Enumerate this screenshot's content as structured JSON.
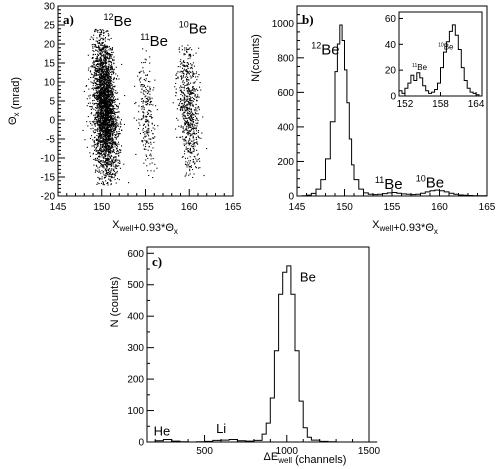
{
  "chart_data": [
    {
      "id": "a",
      "type": "scatter",
      "panel_label": "a)",
      "xlabel": "X_well+0.93*Θ_x",
      "ylabel": "Θ_x (mrad)",
      "xlim": [
        145,
        165
      ],
      "ylim": [
        -20,
        30
      ],
      "xticks": [
        "145",
        "150",
        "155",
        "160",
        "165"
      ],
      "yticks": [
        "-20",
        "-15",
        "-10",
        "-5",
        "0",
        "5",
        "10",
        "15",
        "20",
        "25",
        "30"
      ],
      "annotations": [
        {
          "text": "12Be",
          "mass": "12",
          "el": "Be",
          "x": 150.2,
          "y": 24.8
        },
        {
          "text": "11Be",
          "mass": "11",
          "el": "Be",
          "x": 154.4,
          "y": 19.5
        },
        {
          "text": "10Be",
          "mass": "10",
          "el": "Be",
          "x": 158.8,
          "y": 22.8
        }
      ],
      "clusters": [
        {
          "isotope": "12Be",
          "x_center": 150.3,
          "x_width": 1.3,
          "y_range": [
            -17,
            24
          ],
          "y_center": 3,
          "density": "high"
        },
        {
          "isotope": "11Be",
          "x_center": 155.0,
          "x_width": 1.0,
          "y_range": [
            -16,
            19
          ],
          "y_center": 2,
          "density": "low"
        },
        {
          "isotope": "10Be",
          "x_center": 159.9,
          "x_width": 1.2,
          "y_range": [
            -15,
            20
          ],
          "y_center": 3,
          "density": "medium"
        }
      ]
    },
    {
      "id": "b",
      "type": "line",
      "panel_label": "b)",
      "xlabel": "X_well+0.93*Θ_x",
      "ylabel": "N(counts)",
      "xlim": [
        145,
        165
      ],
      "ylim": [
        0,
        1100
      ],
      "xticks": [
        "145",
        "150",
        "155",
        "160",
        "165"
      ],
      "yticks": [
        "0",
        "200",
        "400",
        "600",
        "800",
        "1000"
      ],
      "annotations": [
        {
          "text": "12Be",
          "mass": "12",
          "el": "Be",
          "x": 146.5,
          "y": 820
        },
        {
          "text": "11Be",
          "mass": "11",
          "el": "Be",
          "x": 153.2,
          "y": 40
        },
        {
          "text": "10Be",
          "mass": "10",
          "el": "Be",
          "x": 157.5,
          "y": 50
        }
      ],
      "series": [
        {
          "x": [
            145.5,
            146,
            146.5,
            147,
            147.5,
            148,
            148.5,
            149,
            149.25,
            149.5,
            149.75,
            150,
            150.25,
            150.5,
            150.75,
            151,
            151.5,
            152,
            152.5,
            153,
            153.5,
            154,
            154.5,
            155,
            155.5,
            156,
            156.5,
            157,
            157.5,
            158,
            158.5,
            159,
            159.5,
            160,
            160.5,
            161,
            161.5,
            162,
            162.5,
            163,
            163.5,
            164,
            164.5
          ],
          "y": [
            2,
            5,
            15,
            40,
            95,
            215,
            430,
            720,
            880,
            990,
            900,
            730,
            540,
            330,
            180,
            95,
            40,
            18,
            10,
            8,
            10,
            14,
            18,
            20,
            16,
            12,
            10,
            8,
            10,
            16,
            24,
            30,
            34,
            30,
            24,
            16,
            10,
            6,
            4,
            3,
            2,
            1,
            1
          ]
        }
      ],
      "inset": {
        "xlim": [
          151,
          165
        ],
        "ylim": [
          0,
          65
        ],
        "xticks": [
          "152",
          "158",
          "164"
        ],
        "yticks": [
          "0",
          "20",
          "40",
          "60"
        ],
        "annotations": [
          {
            "text": "11Be",
            "mass": "11",
            "el": "Be",
            "x": 153.2,
            "y": 20
          },
          {
            "text": "10Be",
            "mass": "10",
            "el": "Be",
            "x": 157.6,
            "y": 36
          }
        ],
        "series": [
          {
            "x": [
              151,
              151.5,
              152,
              152.5,
              153,
              153.5,
              154,
              154.5,
              155,
              155.5,
              156,
              156.5,
              157,
              157.5,
              158,
              158.5,
              159,
              159.5,
              160,
              160.5,
              161,
              161.5,
              162,
              162.5,
              163,
              163.5,
              164,
              164.5
            ],
            "y": [
              4,
              2,
              6,
              10,
              16,
              12,
              18,
              14,
              8,
              4,
              2,
              3,
              5,
              10,
              22,
              34,
              42,
              50,
              55,
              47,
              36,
              22,
              12,
              6,
              3,
              2,
              1,
              0
            ]
          }
        ]
      }
    },
    {
      "id": "c",
      "type": "line",
      "panel_label": "c)",
      "xlabel": "ΔE_well (channels)",
      "ylabel": "N (counts)",
      "xlim": [
        150,
        1500
      ],
      "ylim": [
        0,
        620
      ],
      "xticks": [
        "500",
        "1000",
        "1500"
      ],
      "yticks": [
        "0",
        "100",
        "200",
        "300",
        "400",
        "500",
        "600"
      ],
      "annotations": [
        {
          "text": "He",
          "x": 190,
          "y": 20
        },
        {
          "text": "Li",
          "x": 570,
          "y": 28
        },
        {
          "text": "Be",
          "x": 1080,
          "y": 510
        }
      ],
      "series": [
        {
          "x": [
            150,
            200,
            250,
            300,
            350,
            400,
            450,
            500,
            550,
            600,
            650,
            700,
            750,
            800,
            850,
            875,
            900,
            925,
            950,
            975,
            1000,
            1025,
            1050,
            1075,
            1100,
            1125,
            1150,
            1200,
            1250,
            1300,
            1350,
            1400,
            1450,
            1500
          ],
          "y": [
            0,
            4,
            8,
            3,
            1,
            0,
            1,
            2,
            5,
            6,
            8,
            4,
            3,
            5,
            25,
            60,
            140,
            290,
            470,
            540,
            560,
            470,
            290,
            130,
            45,
            15,
            6,
            2,
            1,
            0,
            0,
            0,
            0,
            0
          ]
        }
      ]
    }
  ]
}
